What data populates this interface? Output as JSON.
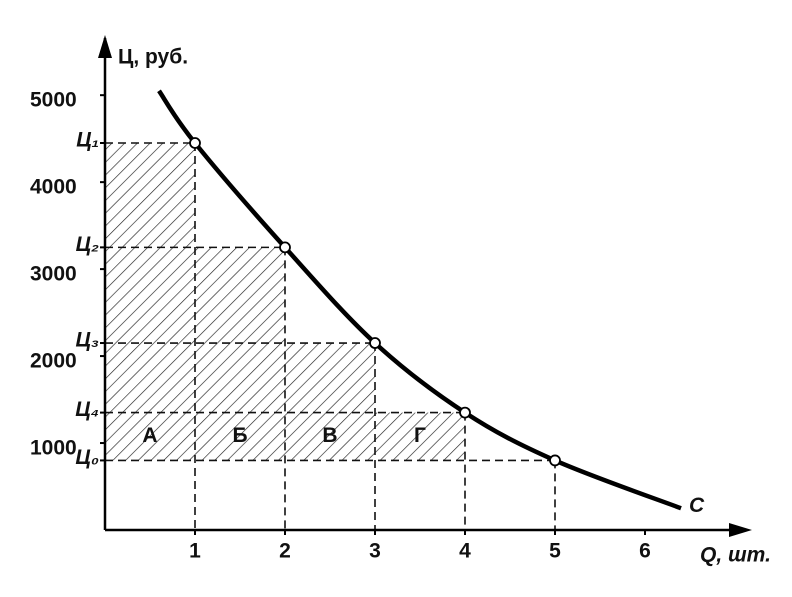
{
  "chart_data": {
    "type": "line",
    "y_label": "Ц, руб.",
    "x_label": "Q, шт.",
    "curve_label": "C",
    "xlim": [
      0,
      7.1
    ],
    "ylim": [
      0,
      5600
    ],
    "xticks": [
      1,
      2,
      3,
      4,
      5,
      6
    ],
    "yticks": [
      1000,
      2000,
      3000,
      4000,
      5000
    ],
    "price_ticks": [
      {
        "value": 4450,
        "label": "Ц₁"
      },
      {
        "value": 3250,
        "label": "Ц₂"
      },
      {
        "value": 2150,
        "label": "Ц₃"
      },
      {
        "value": 1350,
        "label": "Ц₄"
      },
      {
        "value": 800,
        "label": "Ц₀"
      }
    ],
    "curve": {
      "x": [
        0.6,
        1,
        2,
        3,
        4,
        5,
        6.4
      ],
      "y": [
        5050,
        4450,
        3250,
        2150,
        1350,
        800,
        250
      ]
    },
    "points": {
      "x": [
        1,
        2,
        3,
        4,
        5
      ],
      "y": [
        4450,
        3250,
        2150,
        1350,
        800
      ]
    },
    "areas": [
      "А",
      "Б",
      "В",
      "Г"
    ],
    "color": "#000000"
  }
}
